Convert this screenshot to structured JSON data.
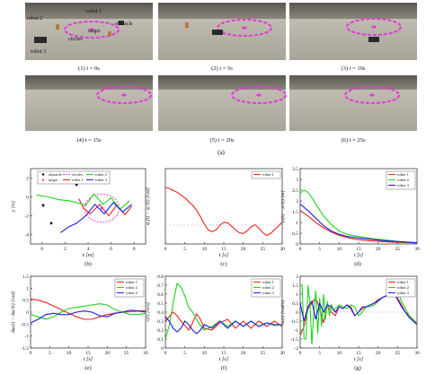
{
  "figure": {
    "top_caption": "(a)",
    "photos": [
      {
        "caption": "(1) t = 0s",
        "overlay_labels": [
          "robot 1",
          "robot 2",
          "target",
          "obstacle",
          "circles",
          "robot 3"
        ]
      },
      {
        "caption": "(2) t = 5s"
      },
      {
        "caption": "(3) t = 10s"
      },
      {
        "caption": "(4) t = 15s"
      },
      {
        "caption": "(5) t = 20s"
      },
      {
        "caption": "(6) t = 25s"
      }
    ],
    "colors": {
      "robot1": "#e8241c",
      "robot2": "#1fd31f",
      "robot3": "#1c1ce0",
      "circles": "#e03cd8",
      "target_marker": "#e03cd8",
      "obstacle_marker": "#000000",
      "ground": "#b9b4aa"
    }
  },
  "chart_data": [
    {
      "type": "line",
      "panel_label": "(b)",
      "xlabel": "x [m]",
      "ylabel": "y [m]",
      "xlim": [
        -1,
        9
      ],
      "ylim": [
        -5,
        3
      ],
      "xticks": [
        "0",
        "2",
        "4",
        "6",
        "8"
      ],
      "yticks": [
        "-4",
        "-2",
        "0",
        "2"
      ],
      "legend": [
        "obstacle",
        "target",
        "circles",
        "robot 1",
        "robot 2",
        "robot 3"
      ],
      "series": [
        {
          "name": "robot 1",
          "x": [
            3.2,
            3.6,
            4.2,
            5.0,
            5.8,
            6.5,
            7.2,
            7.8
          ],
          "y": [
            -0.2,
            -1.2,
            -1.8,
            -0.8,
            -2.0,
            -0.9,
            -1.9,
            -1.0
          ]
        },
        {
          "name": "robot 2",
          "x": [
            -0.5,
            0.5,
            1.5,
            2.3,
            3.0,
            3.8,
            4.5,
            5.3,
            6.0,
            6.8,
            7.6
          ],
          "y": [
            0.2,
            0.0,
            -0.3,
            -0.4,
            -0.6,
            -0.9,
            0.3,
            -0.8,
            -0.1,
            -1.3,
            -0.4
          ]
        },
        {
          "name": "robot 3",
          "x": [
            1.6,
            2.3,
            3.0,
            3.8,
            4.6,
            5.4,
            6.2,
            7.0,
            7.8
          ],
          "y": [
            -3.8,
            -3.2,
            -2.8,
            -2.0,
            -0.8,
            -1.8,
            -0.6,
            -1.6,
            -0.8
          ]
        }
      ],
      "obstacles": [
        {
          "x": 0.1,
          "y": -0.9
        },
        {
          "x": 0.8,
          "y": -2.8
        },
        {
          "x": 3.0,
          "y": 1.3
        }
      ],
      "target": {
        "x": 5.2,
        "y": -1.2
      },
      "circle_center": {
        "x": 5.2,
        "y": -1.2
      }
    },
    {
      "type": "line",
      "panel_label": "(c)",
      "xlabel": "t [s]",
      "ylabel": "φ₁(t) − φ₁ᵈ(t) [rad]",
      "xlim": [
        0,
        30
      ],
      "ylim": [
        -0.4,
        1.2
      ],
      "xticks": [
        "0",
        "5",
        "10",
        "15",
        "20",
        "25",
        "30"
      ],
      "legend": [
        "robot 1"
      ],
      "series": [
        {
          "name": "robot 1",
          "x": [
            0,
            1,
            2,
            3,
            4,
            5,
            6,
            7,
            8,
            9,
            10,
            11,
            12,
            13,
            14,
            15,
            16,
            17,
            18,
            19,
            20,
            21,
            22,
            23,
            24,
            25,
            26,
            27,
            28,
            29,
            30
          ],
          "y": [
            0.8,
            0.78,
            0.74,
            0.7,
            0.64,
            0.58,
            0.5,
            0.42,
            0.32,
            0.18,
            0.02,
            -0.1,
            -0.14,
            -0.1,
            0.0,
            0.06,
            0.05,
            -0.02,
            -0.1,
            -0.16,
            -0.18,
            -0.12,
            -0.04,
            0.01,
            -0.06,
            -0.16,
            -0.22,
            -0.18,
            -0.1,
            -0.02,
            0.06
          ]
        }
      ]
    },
    {
      "type": "line",
      "panel_label": "(d)",
      "xlabel": "t [s]",
      "ylabel": "ρᵢ(t) − ρᵢᵈ(t) [m]",
      "xlim": [
        0,
        30
      ],
      "ylim": [
        0,
        3.5
      ],
      "xticks": [
        "0",
        "5",
        "10",
        "15",
        "20",
        "25",
        "30"
      ],
      "yticks": [
        "0",
        "0.5",
        "1",
        "1.5",
        "2",
        "2.5",
        "3",
        "3.5"
      ],
      "legend": [
        "robot 1",
        "robot 2",
        "robot 3"
      ],
      "series": [
        {
          "name": "robot 1",
          "x": [
            0,
            2,
            4,
            6,
            8,
            10,
            12,
            14,
            16,
            18,
            20,
            22,
            24,
            26,
            28,
            30
          ],
          "y": [
            1.55,
            1.3,
            1.0,
            0.75,
            0.55,
            0.4,
            0.3,
            0.22,
            0.18,
            0.14,
            0.12,
            0.1,
            0.08,
            0.07,
            0.06,
            0.05
          ]
        },
        {
          "name": "robot 2",
          "x": [
            0,
            1,
            2,
            3,
            4,
            6,
            8,
            10,
            12,
            14,
            16,
            18,
            20,
            22,
            24,
            26,
            28,
            30
          ],
          "y": [
            2.35,
            2.5,
            2.4,
            2.15,
            1.85,
            1.3,
            0.9,
            0.6,
            0.45,
            0.38,
            0.32,
            0.26,
            0.22,
            0.18,
            0.14,
            0.1,
            0.07,
            0.05
          ]
        },
        {
          "name": "robot 3",
          "x": [
            0,
            2,
            4,
            6,
            8,
            10,
            12,
            14,
            16,
            18,
            20,
            22,
            24,
            26,
            28,
            30
          ],
          "y": [
            1.85,
            1.55,
            1.2,
            0.85,
            0.6,
            0.45,
            0.35,
            0.3,
            0.26,
            0.22,
            0.18,
            0.15,
            0.12,
            0.1,
            0.08,
            0.06
          ]
        }
      ]
    },
    {
      "type": "line",
      "panel_label": "(e)",
      "xlabel": "t [s]",
      "ylabel": "Δφᵢ(t) − Δφᵢᵈ(t) [rad]",
      "xlim": [
        0,
        30
      ],
      "ylim": [
        -1.5,
        1.5
      ],
      "xticks": [
        "0",
        "5",
        "10",
        "15",
        "20",
        "25",
        "30"
      ],
      "yticks": [
        "-1.5",
        "-1",
        "-0.5",
        "0",
        "0.5",
        "1",
        "1.5"
      ],
      "legend": [
        "robot 1",
        "robot 2",
        "robot 3"
      ],
      "series": [
        {
          "name": "robot 1",
          "x": [
            0,
            2,
            4,
            6,
            8,
            10,
            12,
            14,
            16,
            18,
            20,
            22,
            24,
            26,
            28,
            30
          ],
          "y": [
            0.55,
            0.5,
            0.4,
            0.25,
            0.1,
            -0.05,
            -0.2,
            -0.3,
            -0.3,
            -0.2,
            -0.1,
            -0.05,
            0.0,
            0.02,
            0.05,
            0.05
          ]
        },
        {
          "name": "robot 2",
          "x": [
            0,
            2,
            4,
            6,
            8,
            10,
            12,
            14,
            16,
            18,
            20,
            22,
            24,
            26,
            28,
            30
          ],
          "y": [
            -0.1,
            -0.2,
            -0.3,
            -0.2,
            0.0,
            0.15,
            0.2,
            0.25,
            0.3,
            0.35,
            0.3,
            0.1,
            0.0,
            -0.1,
            -0.1,
            -0.05
          ]
        },
        {
          "name": "robot 3",
          "x": [
            0,
            2,
            4,
            6,
            8,
            10,
            12,
            14,
            16,
            18,
            20,
            22,
            24,
            26,
            28,
            30
          ],
          "y": [
            -0.45,
            -0.3,
            -0.1,
            -0.05,
            -0.1,
            -0.1,
            0.0,
            0.05,
            0.0,
            -0.15,
            -0.2,
            -0.05,
            0.0,
            0.08,
            0.05,
            0.0
          ]
        }
      ]
    },
    {
      "type": "line",
      "panel_label": "(f)",
      "xlabel": "t [s]",
      "ylabel": "vᵢ(t) [m/s]",
      "xlim": [
        0,
        30
      ],
      "ylim": [
        0,
        0.8
      ],
      "xticks": [
        "0",
        "5",
        "10",
        "15",
        "20",
        "25",
        "30"
      ],
      "yticks": [
        "0",
        "0.1",
        "0.2",
        "0.3",
        "0.4",
        "0.5",
        "0.6",
        "0.7",
        "0.8"
      ],
      "legend": [
        "robot 1",
        "robot 2",
        "robot 3"
      ],
      "series": [
        {
          "name": "robot 1",
          "x": [
            0,
            1,
            2,
            3,
            4,
            5,
            6,
            7,
            8,
            9,
            10,
            12,
            14,
            16,
            18,
            20,
            22,
            24,
            26,
            28,
            30
          ],
          "y": [
            0.3,
            0.35,
            0.4,
            0.36,
            0.3,
            0.25,
            0.2,
            0.28,
            0.38,
            0.32,
            0.22,
            0.2,
            0.28,
            0.32,
            0.22,
            0.3,
            0.22,
            0.3,
            0.24,
            0.3,
            0.24
          ]
        },
        {
          "name": "robot 2",
          "x": [
            0,
            1,
            2,
            3,
            4,
            5,
            6,
            7,
            8,
            9,
            10,
            12,
            14,
            16,
            18,
            20,
            22,
            24,
            26,
            28,
            30
          ],
          "y": [
            0.1,
            0.25,
            0.5,
            0.72,
            0.68,
            0.58,
            0.45,
            0.4,
            0.32,
            0.25,
            0.2,
            0.24,
            0.3,
            0.24,
            0.3,
            0.24,
            0.3,
            0.24,
            0.28,
            0.25,
            0.26
          ]
        },
        {
          "name": "robot 3",
          "x": [
            0,
            1,
            2,
            3,
            4,
            5,
            6,
            7,
            8,
            9,
            10,
            12,
            14,
            16,
            18,
            20,
            22,
            24,
            26,
            28,
            30
          ],
          "y": [
            0.35,
            0.3,
            0.22,
            0.18,
            0.22,
            0.3,
            0.26,
            0.2,
            0.16,
            0.2,
            0.26,
            0.22,
            0.3,
            0.22,
            0.3,
            0.24,
            0.3,
            0.24,
            0.28,
            0.26,
            0.26
          ]
        }
      ]
    },
    {
      "type": "line",
      "panel_label": "(g)",
      "xlabel": "t [s]",
      "ylabel": "ωᵢ(t) [rad/s]",
      "xlim": [
        0,
        30
      ],
      "ylim": [
        -2,
        2
      ],
      "xticks": [
        "0",
        "5",
        "10",
        "15",
        "20",
        "25",
        "30"
      ],
      "yticks": [
        "-2",
        "-1.5",
        "-1",
        "-0.5",
        "0",
        "0.5",
        "1",
        "1.5",
        "2"
      ],
      "legend": [
        "robot 1",
        "robot 2",
        "robot 3"
      ],
      "series": [
        {
          "name": "robot 1",
          "x": [
            0,
            1,
            2,
            3,
            4,
            5,
            6,
            7,
            8,
            9,
            10,
            11,
            12,
            13,
            14,
            15,
            16,
            17,
            18,
            19,
            20,
            21,
            22,
            23,
            24,
            25,
            26,
            27,
            28,
            29,
            30
          ],
          "y": [
            -1.3,
            -0.8,
            0.2,
            0.5,
            0.8,
            0.2,
            -0.6,
            0.4,
            0.0,
            -0.2,
            0.3,
            0.2,
            0.4,
            0.3,
            -0.2,
            0.0,
            0.2,
            0.3,
            0.4,
            0.5,
            0.7,
            0.8,
            0.9,
            1.0,
            1.2,
            0.8,
            0.4,
            0.0,
            -0.2,
            -0.5,
            -0.6
          ]
        },
        {
          "name": "robot 2",
          "x": [
            0,
            0.5,
            1,
            1.5,
            2,
            2.5,
            3,
            3.5,
            4,
            4.5,
            5,
            5.5,
            6,
            6.5,
            7,
            7.5,
            8,
            8.5,
            9,
            10,
            11,
            12,
            13,
            14,
            15,
            16,
            17,
            18,
            19,
            20,
            21,
            22,
            23,
            24,
            25,
            26,
            27,
            28,
            29,
            30
          ],
          "y": [
            1.5,
            1.5,
            -1.5,
            -1.5,
            1.5,
            0.5,
            -1.8,
            0.0,
            1.2,
            -1.2,
            0.8,
            -0.8,
            1.0,
            -0.4,
            0.6,
            -0.2,
            0.4,
            0.1,
            0.2,
            0.4,
            0.3,
            0.2,
            0.4,
            0.3,
            -0.2,
            0.0,
            0.3,
            0.3,
            0.4,
            0.6,
            0.8,
            0.9,
            1.0,
            1.1,
            1.2,
            0.6,
            0.2,
            -0.2,
            -0.4,
            -0.6
          ]
        },
        {
          "name": "robot 3",
          "x": [
            0,
            1,
            2,
            3,
            4,
            5,
            6,
            7,
            8,
            9,
            10,
            11,
            12,
            13,
            14,
            15,
            16,
            17,
            18,
            19,
            20,
            21,
            22,
            23,
            24,
            25,
            26,
            27,
            28,
            29,
            30
          ],
          "y": [
            0.5,
            -0.5,
            0.3,
            0.6,
            -0.4,
            0.5,
            0.0,
            0.4,
            0.3,
            0.0,
            0.3,
            0.2,
            0.4,
            0.2,
            -0.2,
            0.0,
            0.3,
            0.3,
            0.4,
            0.5,
            0.6,
            0.8,
            0.9,
            1.0,
            1.1,
            0.7,
            0.3,
            0.0,
            -0.3,
            -0.5,
            -0.7
          ]
        }
      ]
    }
  ]
}
